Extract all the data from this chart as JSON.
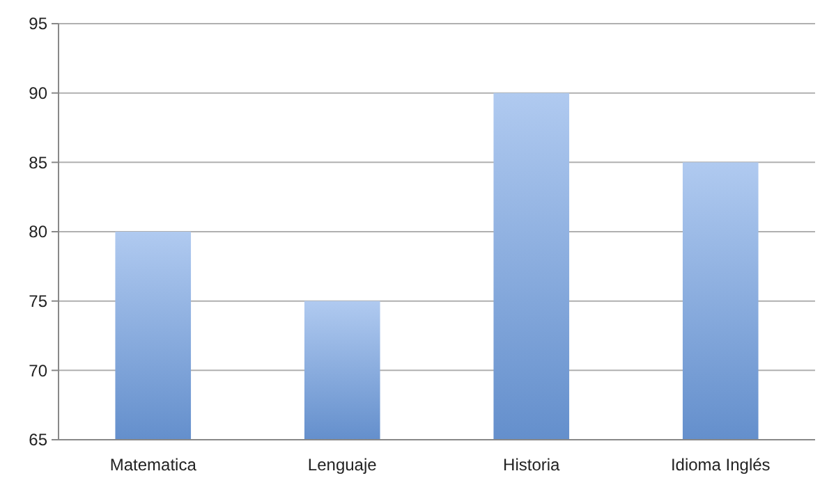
{
  "chart_data": {
    "type": "bar",
    "categories": [
      "Matematica",
      "Lenguaje",
      "Historia",
      "Idioma Inglés"
    ],
    "values": [
      80,
      75,
      90,
      85
    ],
    "color": "#6f9fe3",
    "ylim": [
      65,
      95
    ],
    "yticks": [
      65,
      70,
      75,
      80,
      85,
      90,
      95
    ],
    "grid": "y"
  }
}
